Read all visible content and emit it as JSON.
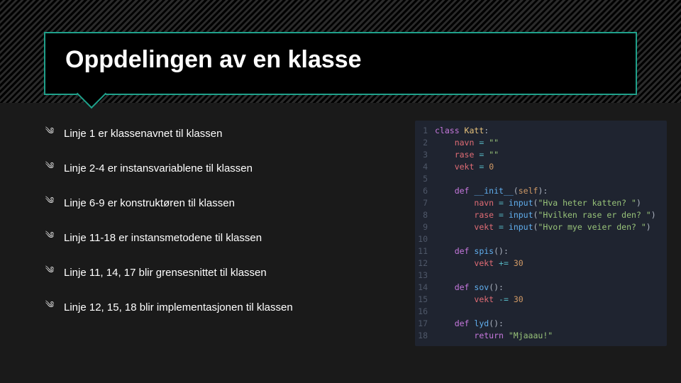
{
  "colors": {
    "accent": "#1fa08a",
    "code_bg": "#1f2430",
    "ln": "#4e5768",
    "keyword": "#c678dd",
    "classname": "#e5c07b",
    "def": "#c678dd",
    "fn": "#61afef",
    "param": "#d19a66",
    "var": "#e06c75",
    "op": "#56b6c2",
    "str": "#98c379",
    "num": "#d19a66",
    "plain": "#abb2bf"
  },
  "title": "Oppdelingen av en klasse",
  "bullets": [
    "Linje 1 er klassenavnet til klassen",
    "Linje 2-4 er instansvariablene til klassen",
    "Linje 6-9 er konstruktøren til klassen",
    "Linje 11-18 er instansmetodene til klassen",
    "Linje 11, 14, 17 blir grensesnittet til klassen",
    "Linje 12, 15, 18 blir implementasjonen til klassen"
  ],
  "code": [
    {
      "n": 1,
      "t": [
        [
          "key",
          "class "
        ],
        [
          "cls",
          "Katt"
        ],
        [
          "pl",
          ":"
        ]
      ]
    },
    {
      "n": 2,
      "t": [
        [
          "pl",
          "    "
        ],
        [
          "var",
          "navn"
        ],
        [
          "pl",
          " "
        ],
        [
          "op",
          "="
        ],
        [
          "pl",
          " "
        ],
        [
          "str",
          "\"\""
        ]
      ]
    },
    {
      "n": 3,
      "t": [
        [
          "pl",
          "    "
        ],
        [
          "var",
          "rase"
        ],
        [
          "pl",
          " "
        ],
        [
          "op",
          "="
        ],
        [
          "pl",
          " "
        ],
        [
          "str",
          "\"\""
        ]
      ]
    },
    {
      "n": 4,
      "t": [
        [
          "pl",
          "    "
        ],
        [
          "var",
          "vekt"
        ],
        [
          "pl",
          " "
        ],
        [
          "op",
          "="
        ],
        [
          "pl",
          " "
        ],
        [
          "num",
          "0"
        ]
      ]
    },
    {
      "n": 5,
      "t": [
        [
          "pl",
          ""
        ]
      ]
    },
    {
      "n": 6,
      "t": [
        [
          "pl",
          "    "
        ],
        [
          "def",
          "def "
        ],
        [
          "fn",
          "__init__"
        ],
        [
          "pl",
          "("
        ],
        [
          "par",
          "self"
        ],
        [
          "pl",
          "):"
        ]
      ]
    },
    {
      "n": 7,
      "t": [
        [
          "pl",
          "        "
        ],
        [
          "var",
          "navn"
        ],
        [
          "pl",
          " "
        ],
        [
          "op",
          "="
        ],
        [
          "pl",
          " "
        ],
        [
          "fn",
          "input"
        ],
        [
          "pl",
          "("
        ],
        [
          "str",
          "\"Hva heter katten? \""
        ],
        [
          "pl",
          ")"
        ]
      ]
    },
    {
      "n": 8,
      "t": [
        [
          "pl",
          "        "
        ],
        [
          "var",
          "rase"
        ],
        [
          "pl",
          " "
        ],
        [
          "op",
          "="
        ],
        [
          "pl",
          " "
        ],
        [
          "fn",
          "input"
        ],
        [
          "pl",
          "("
        ],
        [
          "str",
          "\"Hvilken rase er den? \""
        ],
        [
          "pl",
          ")"
        ]
      ]
    },
    {
      "n": 9,
      "t": [
        [
          "pl",
          "        "
        ],
        [
          "var",
          "vekt"
        ],
        [
          "pl",
          " "
        ],
        [
          "op",
          "="
        ],
        [
          "pl",
          " "
        ],
        [
          "fn",
          "input"
        ],
        [
          "pl",
          "("
        ],
        [
          "str",
          "\"Hvor mye veier den? \""
        ],
        [
          "pl",
          ")"
        ]
      ]
    },
    {
      "n": 10,
      "t": [
        [
          "pl",
          ""
        ]
      ]
    },
    {
      "n": 11,
      "t": [
        [
          "pl",
          "    "
        ],
        [
          "def",
          "def "
        ],
        [
          "fn",
          "spis"
        ],
        [
          "pl",
          "():"
        ]
      ]
    },
    {
      "n": 12,
      "t": [
        [
          "pl",
          "        "
        ],
        [
          "var",
          "vekt"
        ],
        [
          "pl",
          " "
        ],
        [
          "op",
          "+="
        ],
        [
          "pl",
          " "
        ],
        [
          "num",
          "30"
        ]
      ]
    },
    {
      "n": 13,
      "t": [
        [
          "pl",
          ""
        ]
      ]
    },
    {
      "n": 14,
      "t": [
        [
          "pl",
          "    "
        ],
        [
          "def",
          "def "
        ],
        [
          "fn",
          "sov"
        ],
        [
          "pl",
          "():"
        ]
      ]
    },
    {
      "n": 15,
      "t": [
        [
          "pl",
          "        "
        ],
        [
          "var",
          "vekt"
        ],
        [
          "pl",
          " "
        ],
        [
          "op",
          "-="
        ],
        [
          "pl",
          " "
        ],
        [
          "num",
          "30"
        ]
      ]
    },
    {
      "n": 16,
      "t": [
        [
          "pl",
          ""
        ]
      ]
    },
    {
      "n": 17,
      "t": [
        [
          "pl",
          "    "
        ],
        [
          "def",
          "def "
        ],
        [
          "fn",
          "lyd"
        ],
        [
          "pl",
          "():"
        ]
      ]
    },
    {
      "n": 18,
      "t": [
        [
          "pl",
          "        "
        ],
        [
          "key",
          "return "
        ],
        [
          "str",
          "\"Mjaaau!\""
        ]
      ]
    }
  ]
}
